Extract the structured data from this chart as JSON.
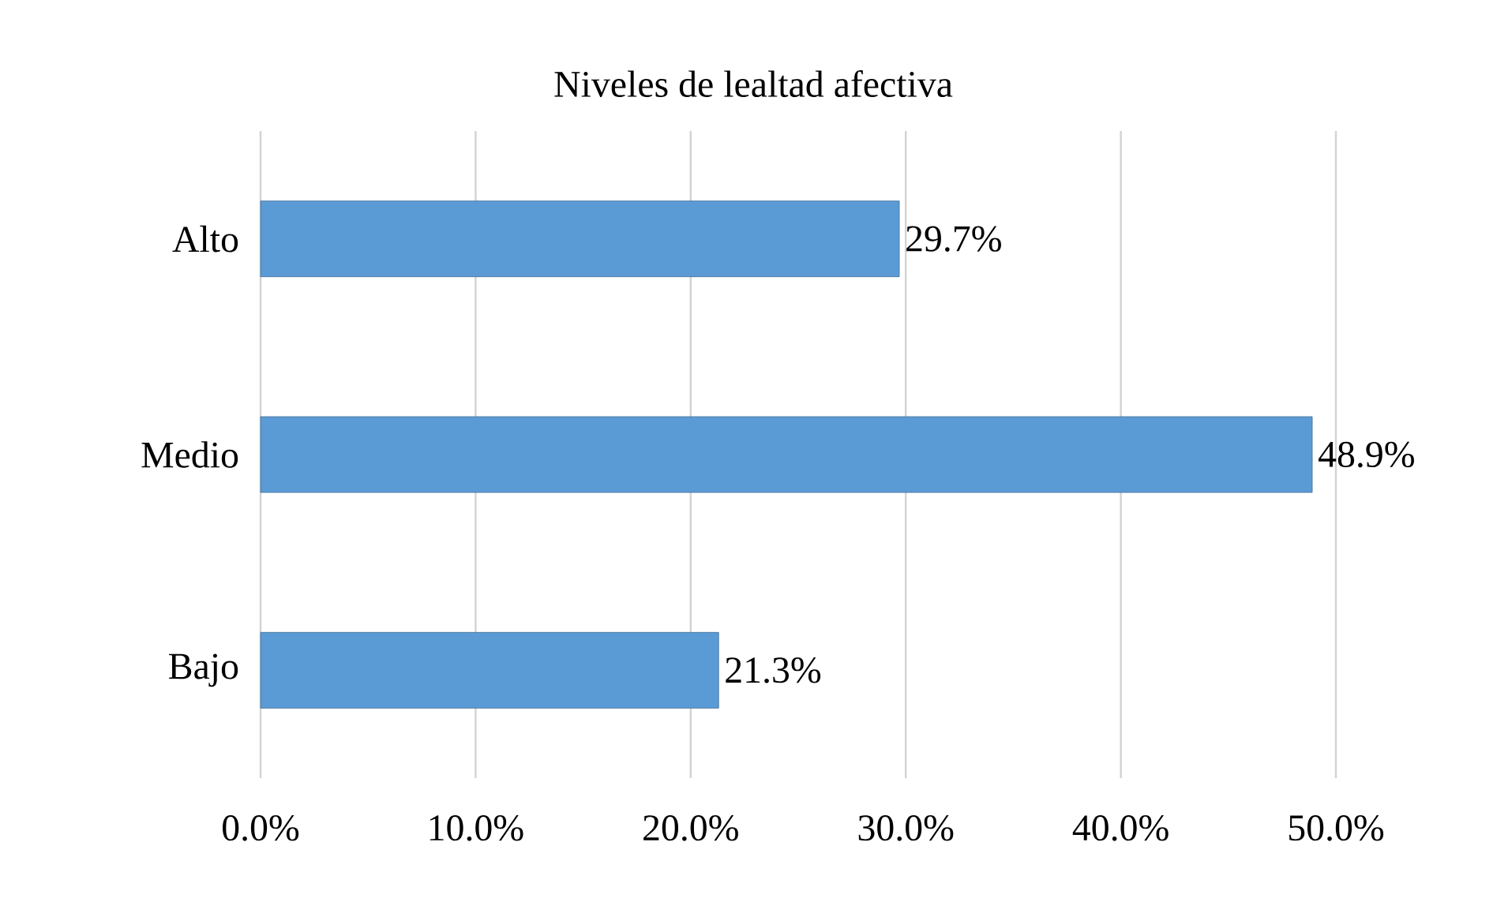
{
  "chart_data": {
    "type": "bar",
    "orientation": "horizontal",
    "title": "Niveles de lealtad afectiva",
    "categories": [
      "Alto",
      "Medio",
      "Bajo"
    ],
    "values": [
      29.7,
      48.9,
      21.3
    ],
    "value_labels": [
      "29.7%",
      "48.9%",
      "21.3%"
    ],
    "color": "#5b9bd5",
    "xlim": [
      0,
      50
    ],
    "xticks": [
      {
        "value": 0,
        "label": "0.0%"
      },
      {
        "value": 10,
        "label": "10.0%"
      },
      {
        "value": 20,
        "label": "20.0%"
      },
      {
        "value": 30,
        "label": "30.0%"
      },
      {
        "value": 40,
        "label": "40.0%"
      },
      {
        "value": 50,
        "label": "50.0%"
      }
    ],
    "grid": "x"
  }
}
